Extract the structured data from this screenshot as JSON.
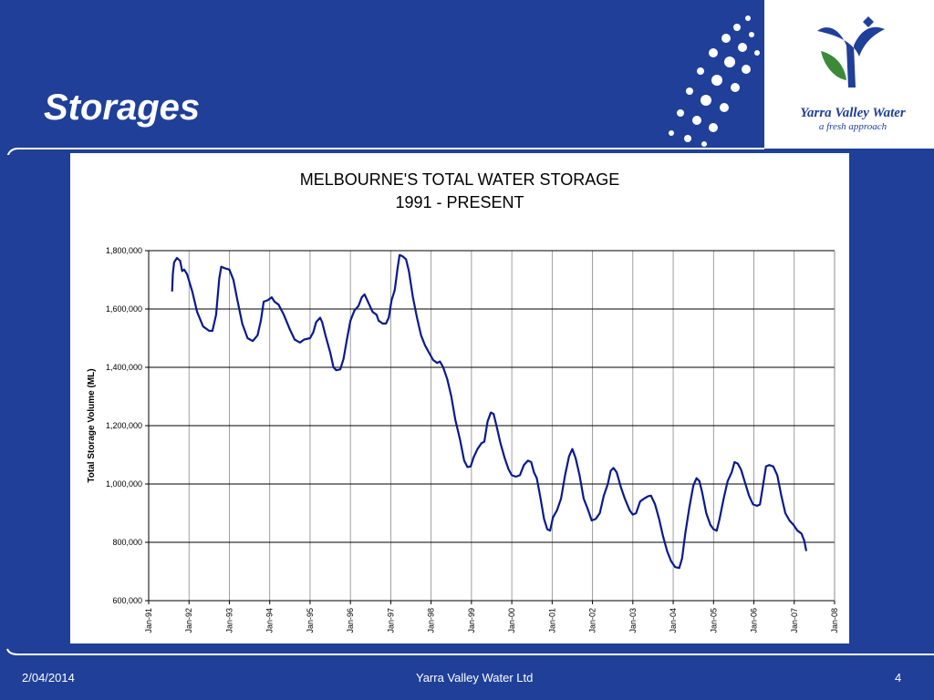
{
  "slide": {
    "title": "Storages",
    "logo_name": "Yarra Valley Water",
    "logo_tagline": "a fresh approach",
    "footer_date": "2/04/2014",
    "footer_company": "Yarra Valley Water Ltd",
    "footer_page": "4"
  },
  "colors": {
    "background": "#1f3f99",
    "series": "#0a1a8c",
    "accent_green": "#3a8a3a"
  },
  "chart_data": {
    "type": "line",
    "title_line1": "MELBOURNE'S TOTAL WATER STORAGE",
    "title_line2": "1991 - PRESENT",
    "xlabel": "",
    "ylabel": "Total Storage Volume (ML)",
    "ylim": [
      600000,
      1800000
    ],
    "yticks": [
      600000,
      800000,
      1000000,
      1200000,
      1400000,
      1600000,
      1800000
    ],
    "ytick_labels": [
      "600,000",
      "800,000",
      "1,000,000",
      "1,200,000",
      "1,400,000",
      "1,600,000",
      "1,800,000"
    ],
    "xticks": [
      "Jan-91",
      "Jan-92",
      "Jan-93",
      "Jan-94",
      "Jan-95",
      "Jan-96",
      "Jan-97",
      "Jan-98",
      "Jan-99",
      "Jan-00",
      "Jan-01",
      "Jan-02",
      "Jan-03",
      "Jan-04",
      "Jan-05",
      "Jan-06",
      "Jan-07",
      "Jan-08"
    ],
    "xlim": [
      1991.0,
      2008.0
    ],
    "grid": true,
    "series": [
      {
        "points": [
          [
            1991.58,
            1660000
          ],
          [
            1991.6,
            1720000
          ],
          [
            1991.63,
            1760000
          ],
          [
            1991.7,
            1775000
          ],
          [
            1991.78,
            1765000
          ],
          [
            1991.83,
            1730000
          ],
          [
            1991.88,
            1735000
          ],
          [
            1991.95,
            1720000
          ],
          [
            1992.08,
            1660000
          ],
          [
            1992.2,
            1590000
          ],
          [
            1992.35,
            1540000
          ],
          [
            1992.5,
            1525000
          ],
          [
            1992.58,
            1525000
          ],
          [
            1992.67,
            1580000
          ],
          [
            1992.75,
            1705000
          ],
          [
            1992.8,
            1745000
          ],
          [
            1992.88,
            1740000
          ],
          [
            1993.0,
            1735000
          ],
          [
            1993.1,
            1700000
          ],
          [
            1993.2,
            1630000
          ],
          [
            1993.32,
            1550000
          ],
          [
            1993.45,
            1500000
          ],
          [
            1993.58,
            1490000
          ],
          [
            1993.7,
            1510000
          ],
          [
            1993.78,
            1560000
          ],
          [
            1993.85,
            1625000
          ],
          [
            1993.95,
            1630000
          ],
          [
            1994.05,
            1640000
          ],
          [
            1994.12,
            1625000
          ],
          [
            1994.22,
            1615000
          ],
          [
            1994.35,
            1580000
          ],
          [
            1994.5,
            1530000
          ],
          [
            1994.62,
            1495000
          ],
          [
            1994.75,
            1485000
          ],
          [
            1994.85,
            1495000
          ],
          [
            1995.0,
            1500000
          ],
          [
            1995.08,
            1520000
          ],
          [
            1995.15,
            1555000
          ],
          [
            1995.25,
            1570000
          ],
          [
            1995.3,
            1555000
          ],
          [
            1995.38,
            1510000
          ],
          [
            1995.5,
            1450000
          ],
          [
            1995.58,
            1400000
          ],
          [
            1995.65,
            1390000
          ],
          [
            1995.75,
            1393000
          ],
          [
            1995.83,
            1430000
          ],
          [
            1995.92,
            1500000
          ],
          [
            1996.0,
            1560000
          ],
          [
            1996.1,
            1595000
          ],
          [
            1996.2,
            1610000
          ],
          [
            1996.28,
            1640000
          ],
          [
            1996.35,
            1650000
          ],
          [
            1996.45,
            1620000
          ],
          [
            1996.55,
            1590000
          ],
          [
            1996.65,
            1580000
          ],
          [
            1996.7,
            1560000
          ],
          [
            1996.8,
            1550000
          ],
          [
            1996.88,
            1550000
          ],
          [
            1996.95,
            1570000
          ],
          [
            1997.02,
            1630000
          ],
          [
            1997.1,
            1665000
          ],
          [
            1997.17,
            1740000
          ],
          [
            1997.22,
            1785000
          ],
          [
            1997.3,
            1780000
          ],
          [
            1997.38,
            1770000
          ],
          [
            1997.45,
            1730000
          ],
          [
            1997.55,
            1640000
          ],
          [
            1997.65,
            1570000
          ],
          [
            1997.75,
            1510000
          ],
          [
            1997.85,
            1475000
          ],
          [
            1997.95,
            1450000
          ],
          [
            1998.05,
            1425000
          ],
          [
            1998.15,
            1415000
          ],
          [
            1998.22,
            1420000
          ],
          [
            1998.3,
            1400000
          ],
          [
            1998.4,
            1360000
          ],
          [
            1998.5,
            1300000
          ],
          [
            1998.6,
            1220000
          ],
          [
            1998.72,
            1150000
          ],
          [
            1998.82,
            1080000
          ],
          [
            1998.9,
            1058000
          ],
          [
            1998.98,
            1060000
          ],
          [
            1999.05,
            1090000
          ],
          [
            1999.15,
            1120000
          ],
          [
            1999.25,
            1140000
          ],
          [
            1999.32,
            1145000
          ],
          [
            1999.4,
            1215000
          ],
          [
            1999.48,
            1245000
          ],
          [
            1999.55,
            1240000
          ],
          [
            1999.62,
            1200000
          ],
          [
            1999.72,
            1140000
          ],
          [
            1999.82,
            1090000
          ],
          [
            1999.92,
            1050000
          ],
          [
            2000.0,
            1030000
          ],
          [
            2000.1,
            1025000
          ],
          [
            2000.2,
            1030000
          ],
          [
            2000.3,
            1065000
          ],
          [
            2000.4,
            1080000
          ],
          [
            2000.48,
            1075000
          ],
          [
            2000.55,
            1040000
          ],
          [
            2000.62,
            1020000
          ],
          [
            2000.7,
            960000
          ],
          [
            2000.8,
            880000
          ],
          [
            2000.88,
            845000
          ],
          [
            2000.95,
            840000
          ],
          [
            2001.02,
            885000
          ],
          [
            2001.12,
            910000
          ],
          [
            2001.22,
            950000
          ],
          [
            2001.32,
            1030000
          ],
          [
            2001.42,
            1095000
          ],
          [
            2001.5,
            1120000
          ],
          [
            2001.58,
            1090000
          ],
          [
            2001.68,
            1030000
          ],
          [
            2001.78,
            950000
          ],
          [
            2001.88,
            915000
          ],
          [
            2001.98,
            875000
          ],
          [
            2002.08,
            880000
          ],
          [
            2002.18,
            900000
          ],
          [
            2002.28,
            960000
          ],
          [
            2002.38,
            1000000
          ],
          [
            2002.45,
            1045000
          ],
          [
            2002.52,
            1055000
          ],
          [
            2002.6,
            1040000
          ],
          [
            2002.7,
            990000
          ],
          [
            2002.8,
            950000
          ],
          [
            2002.92,
            910000
          ],
          [
            2003.0,
            895000
          ],
          [
            2003.08,
            900000
          ],
          [
            2003.18,
            940000
          ],
          [
            2003.28,
            950000
          ],
          [
            2003.38,
            958000
          ],
          [
            2003.45,
            960000
          ],
          [
            2003.55,
            930000
          ],
          [
            2003.65,
            880000
          ],
          [
            2003.75,
            820000
          ],
          [
            2003.85,
            770000
          ],
          [
            2003.95,
            735000
          ],
          [
            2004.05,
            715000
          ],
          [
            2004.15,
            712000
          ],
          [
            2004.22,
            745000
          ],
          [
            2004.3,
            830000
          ],
          [
            2004.4,
            920000
          ],
          [
            2004.5,
            995000
          ],
          [
            2004.58,
            1020000
          ],
          [
            2004.65,
            1010000
          ],
          [
            2004.72,
            970000
          ],
          [
            2004.82,
            900000
          ],
          [
            2004.92,
            860000
          ],
          [
            2005.0,
            845000
          ],
          [
            2005.08,
            840000
          ],
          [
            2005.15,
            880000
          ],
          [
            2005.25,
            950000
          ],
          [
            2005.35,
            1010000
          ],
          [
            2005.45,
            1040000
          ],
          [
            2005.52,
            1075000
          ],
          [
            2005.6,
            1070000
          ],
          [
            2005.68,
            1050000
          ],
          [
            2005.78,
            1005000
          ],
          [
            2005.88,
            960000
          ],
          [
            2005.98,
            930000
          ],
          [
            2006.08,
            925000
          ],
          [
            2006.15,
            930000
          ],
          [
            2006.22,
            990000
          ],
          [
            2006.3,
            1060000
          ],
          [
            2006.38,
            1065000
          ],
          [
            2006.48,
            1060000
          ],
          [
            2006.58,
            1030000
          ],
          [
            2006.68,
            960000
          ],
          [
            2006.78,
            900000
          ],
          [
            2006.88,
            875000
          ],
          [
            2006.98,
            860000
          ],
          [
            2007.08,
            840000
          ],
          [
            2007.18,
            830000
          ],
          [
            2007.25,
            805000
          ],
          [
            2007.3,
            770000
          ]
        ]
      }
    ]
  }
}
